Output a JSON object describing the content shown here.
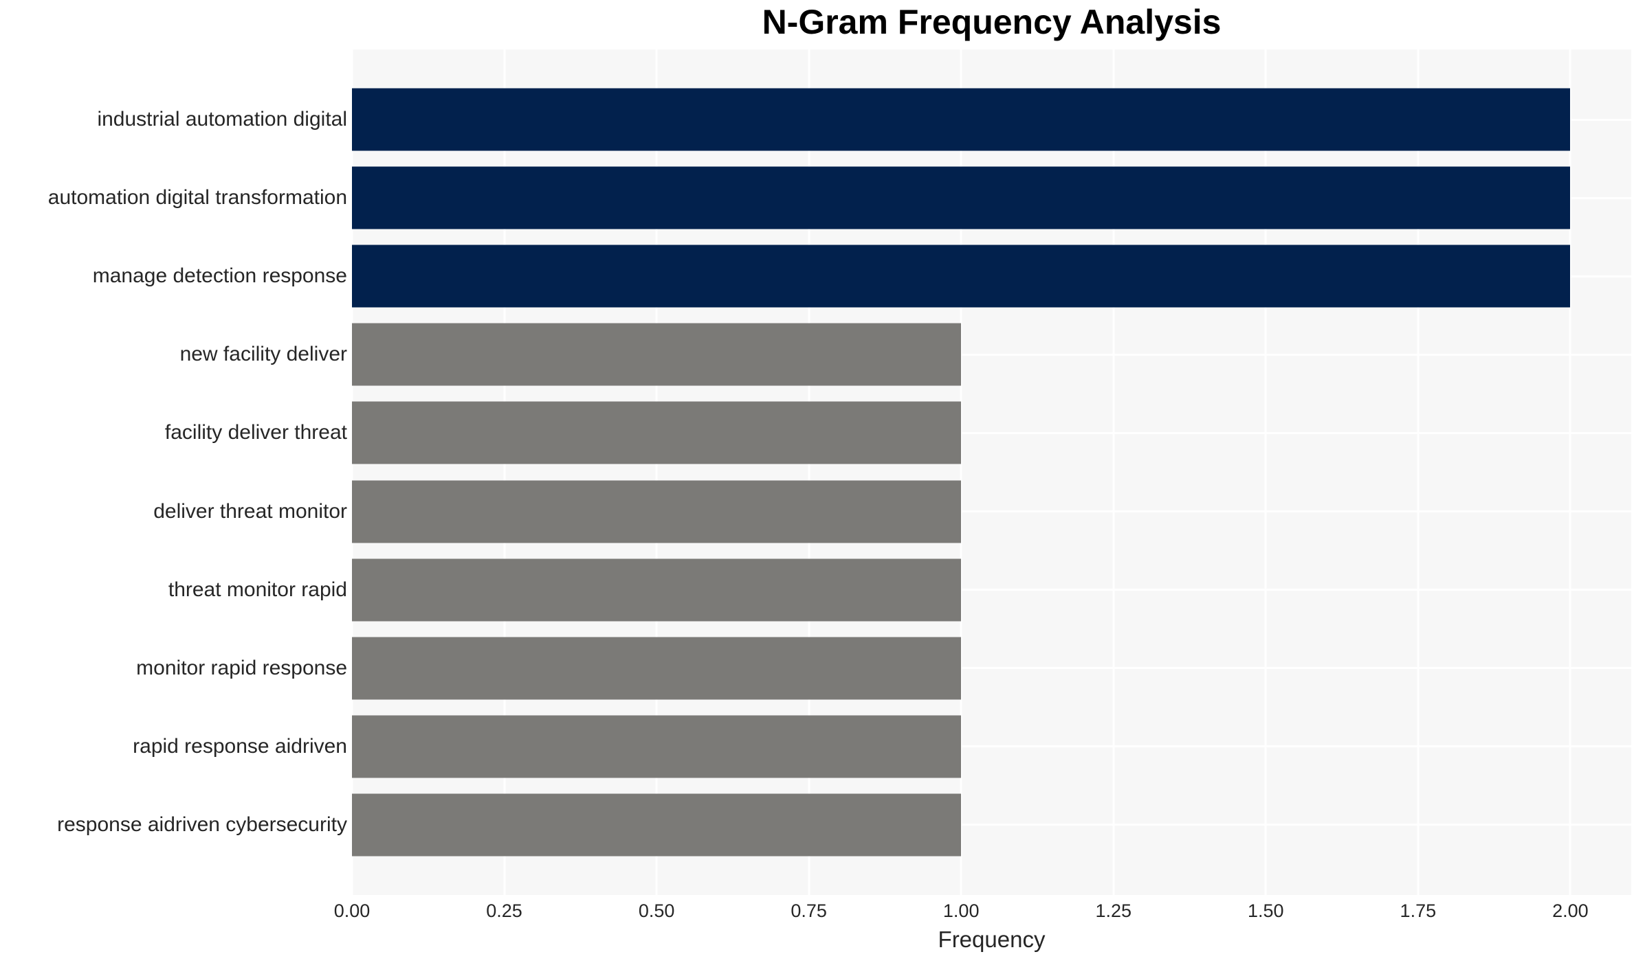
{
  "chart_data": {
    "type": "bar",
    "orientation": "horizontal",
    "title": "N-Gram Frequency Analysis",
    "xlabel": "Frequency",
    "ylabel": "",
    "categories": [
      "industrial automation digital",
      "automation digital transformation",
      "manage detection response",
      "new facility deliver",
      "facility deliver threat",
      "deliver threat monitor",
      "threat monitor rapid",
      "monitor rapid response",
      "rapid response aidriven",
      "response aidriven cybersecurity"
    ],
    "values": [
      2,
      2,
      2,
      1,
      1,
      1,
      1,
      1,
      1,
      1
    ],
    "bar_colors": [
      "#02214d",
      "#02214d",
      "#02214d",
      "#7b7a77",
      "#7b7a77",
      "#7b7a77",
      "#7b7a77",
      "#7b7a77",
      "#7b7a77",
      "#7b7a77"
    ],
    "x_ticks": [
      "0.00",
      "0.25",
      "0.50",
      "0.75",
      "1.00",
      "1.25",
      "1.50",
      "1.75",
      "2.00"
    ],
    "x_tick_values": [
      0,
      0.25,
      0.5,
      0.75,
      1.0,
      1.25,
      1.5,
      1.75,
      2.0
    ],
    "xlim": [
      0,
      2.1
    ],
    "grid": true,
    "legend": false,
    "style": {
      "plot_background": "#f7f7f7",
      "figure_background": "#ffffff",
      "gridline_color": "#ffffff",
      "title_color": "#000000",
      "tick_label_color": "#262626"
    }
  }
}
